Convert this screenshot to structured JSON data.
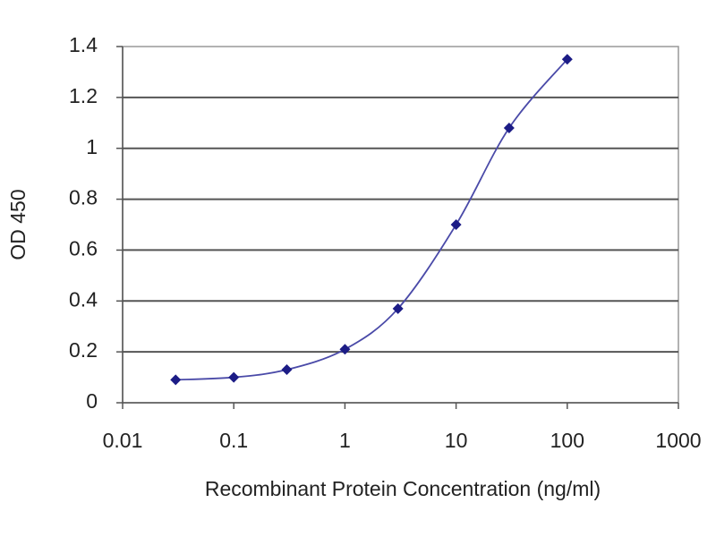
{
  "chart_data": {
    "type": "line",
    "x_label": "Recombinant Protein Concentration (ng/ml)",
    "y_label": "OD 450",
    "x": [
      0.03,
      0.1,
      0.3,
      1,
      3,
      10,
      30,
      100
    ],
    "values": [
      0.09,
      0.1,
      0.13,
      0.21,
      0.37,
      0.7,
      1.08,
      1.35
    ],
    "color": "#1c1c86",
    "line_color": "#4a4aa8",
    "xlog": true,
    "xlim": [
      0.01,
      1000
    ],
    "xticks": [
      0.01,
      0.1,
      1,
      10,
      100,
      1000
    ],
    "ylim": [
      0,
      1.4
    ],
    "yticks": [
      0,
      0.2,
      0.4,
      0.6,
      0.8,
      1,
      1.2,
      1.4
    ],
    "grid": true
  }
}
